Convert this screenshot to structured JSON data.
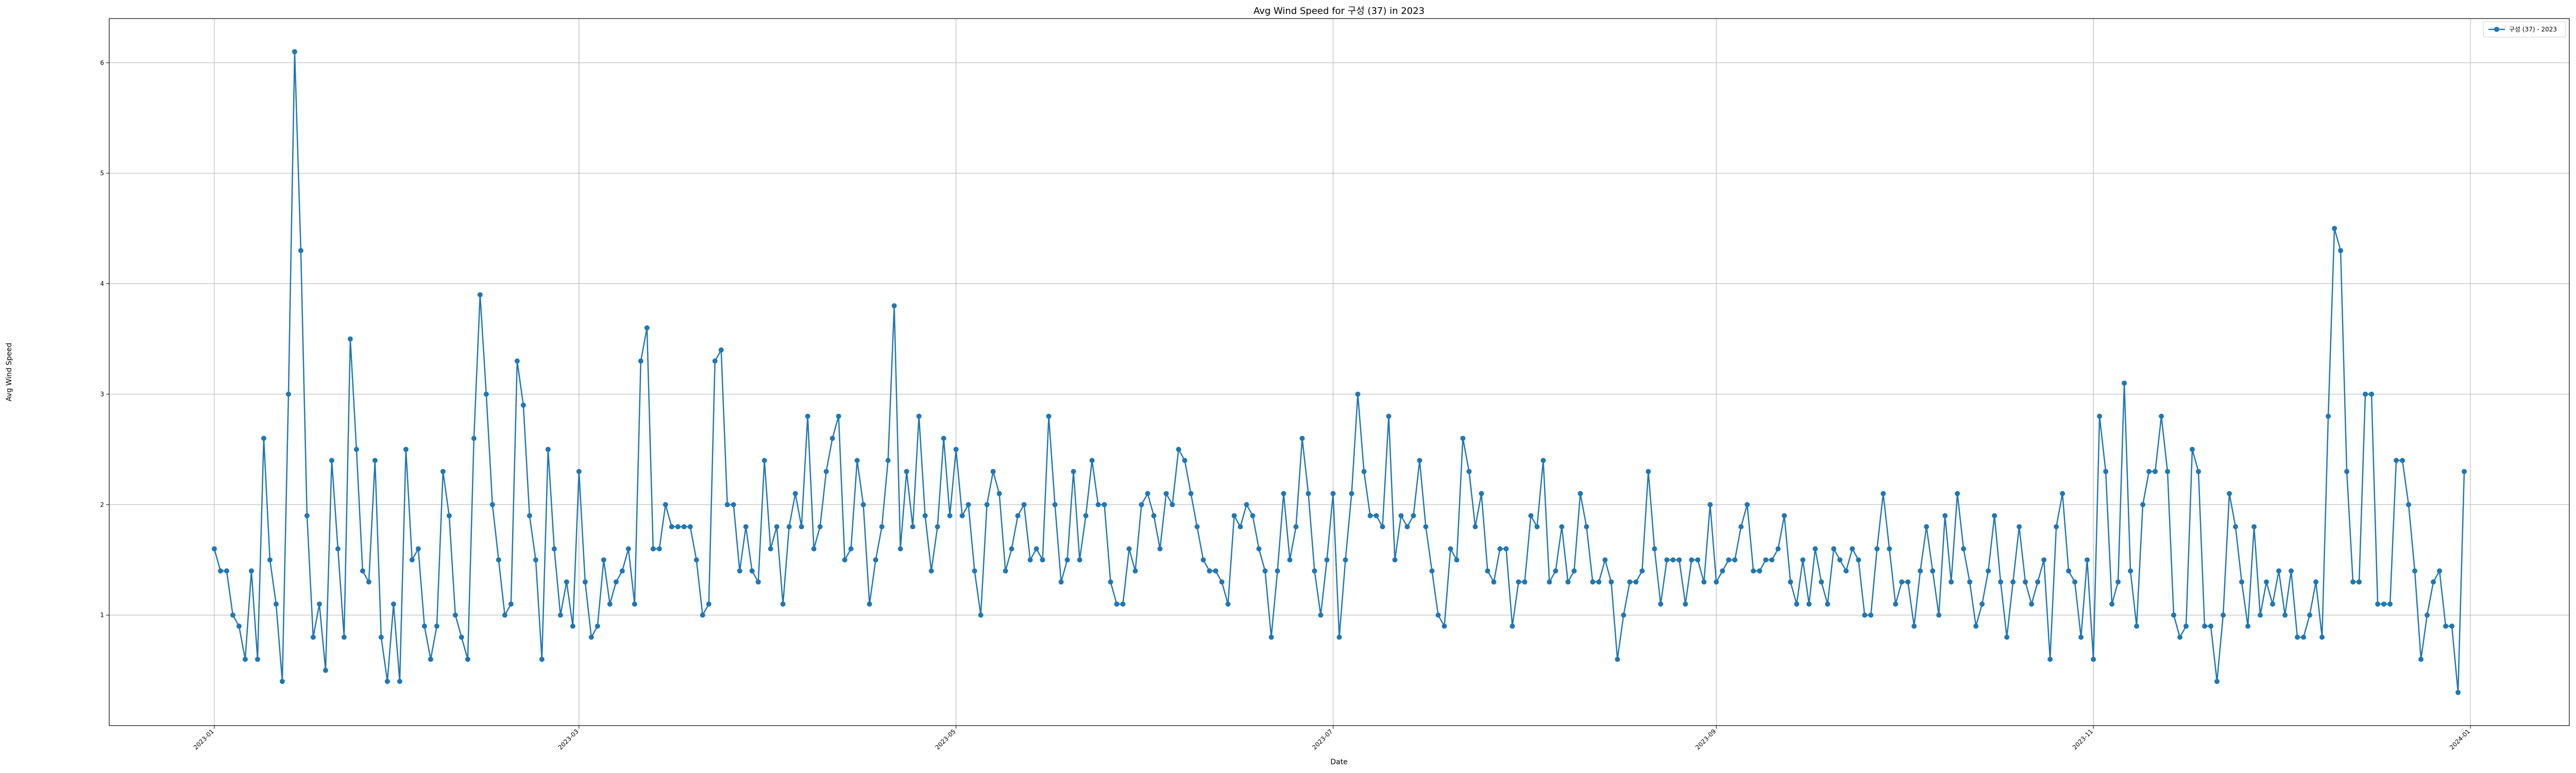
{
  "chart_data": {
    "type": "line",
    "title": "Avg Wind Speed for 구성 (37) in 2023",
    "xlabel": "Date",
    "ylabel": "Avg Wind Speed",
    "x_axis": {
      "kind": "date",
      "range": [
        "2022-12-15",
        "2024-01-17"
      ],
      "ticks": [
        "2023-01",
        "2023-03",
        "2023-05",
        "2023-07",
        "2023-09",
        "2023-11",
        "2024-01"
      ]
    },
    "y_axis": {
      "range": [
        0,
        6.4
      ],
      "ticks": [
        1,
        2,
        3,
        4,
        5,
        6
      ]
    },
    "grid": true,
    "legend_position": "top-right",
    "color": "#1f77b4",
    "x_start": "2023-01-01",
    "series": [
      {
        "name": "구성 (37) - 2023",
        "values": [
          1.6,
          1.4,
          1.4,
          1.0,
          0.9,
          0.6,
          1.4,
          0.6,
          2.6,
          1.5,
          1.1,
          0.4,
          3.0,
          6.1,
          4.3,
          1.9,
          0.8,
          1.1,
          0.5,
          2.4,
          1.6,
          0.8,
          3.5,
          2.5,
          1.4,
          1.3,
          2.4,
          0.8,
          0.4,
          1.1,
          0.4,
          2.5,
          1.5,
          1.6,
          0.9,
          0.6,
          0.9,
          2.3,
          1.9,
          1.0,
          0.8,
          0.6,
          2.6,
          3.9,
          3.0,
          2.0,
          1.5,
          1.0,
          1.1,
          3.3,
          2.9,
          1.9,
          1.5,
          0.6,
          2.5,
          1.6,
          1.0,
          1.3,
          0.9,
          2.3,
          1.3,
          0.8,
          0.9,
          1.5,
          1.1,
          1.3,
          1.4,
          1.6,
          1.1,
          3.3,
          3.6,
          1.6,
          1.6,
          2.0,
          1.8,
          1.8,
          1.8,
          1.8,
          1.5,
          1.0,
          1.1,
          3.3,
          3.4,
          2.0,
          2.0,
          1.4,
          1.8,
          1.4,
          1.3,
          2.4,
          1.6,
          1.8,
          1.1,
          1.8,
          2.1,
          1.8,
          2.8,
          1.6,
          1.8,
          2.3,
          2.6,
          2.8,
          1.5,
          1.6,
          2.4,
          2.0,
          1.1,
          1.5,
          1.8,
          2.4,
          3.8,
          1.6,
          2.3,
          1.8,
          2.8,
          1.9,
          1.4,
          1.8,
          2.6,
          1.9,
          2.5,
          1.9,
          2.0,
          1.4,
          1.0,
          2.0,
          2.3,
          2.1,
          1.4,
          1.6,
          1.9,
          2.0,
          1.5,
          1.6,
          1.5,
          2.8,
          2.0,
          1.3,
          1.5,
          2.3,
          1.5,
          1.9,
          2.4,
          2.0,
          2.0,
          1.3,
          1.1,
          1.1,
          1.6,
          1.4,
          2.0,
          2.1,
          1.9,
          1.6,
          2.1,
          2.0,
          2.5,
          2.4,
          2.1,
          1.8,
          1.5,
          1.4,
          1.4,
          1.3,
          1.1,
          1.9,
          1.8,
          2.0,
          1.9,
          1.6,
          1.4,
          0.8,
          1.4,
          2.1,
          1.5,
          1.8,
          2.6,
          2.1,
          1.4,
          1.0,
          1.5,
          2.1,
          0.8,
          1.5,
          2.1,
          3.0,
          2.3,
          1.9,
          1.9,
          1.8,
          2.8,
          1.5,
          1.9,
          1.8,
          1.9,
          2.4,
          1.8,
          1.4,
          1.0,
          0.9,
          1.6,
          1.5,
          2.6,
          2.3,
          1.8,
          2.1,
          1.4,
          1.3,
          1.6,
          1.6,
          0.9,
          1.3,
          1.3,
          1.9,
          1.8,
          2.4,
          1.3,
          1.4,
          1.8,
          1.3,
          1.4,
          2.1,
          1.8,
          1.3,
          1.3,
          1.5,
          1.3,
          0.6,
          1.0,
          1.3,
          1.3,
          1.4,
          2.3,
          1.6,
          1.1,
          1.5,
          1.5,
          1.5,
          1.1,
          1.5,
          1.5,
          1.3,
          2.0,
          1.3,
          1.4,
          1.5,
          1.5,
          1.8,
          2.0,
          1.4,
          1.4,
          1.5,
          1.5,
          1.6,
          1.9,
          1.3,
          1.1,
          1.5,
          1.1,
          1.6,
          1.3,
          1.1,
          1.6,
          1.5,
          1.4,
          1.6,
          1.5,
          1.0,
          1.0,
          1.6,
          2.1,
          1.6,
          1.1,
          1.3,
          1.3,
          0.9,
          1.4,
          1.8,
          1.4,
          1.0,
          1.9,
          1.3,
          2.1,
          1.6,
          1.3,
          0.9,
          1.1,
          1.4,
          1.9,
          1.3,
          0.8,
          1.3,
          1.8,
          1.3,
          1.1,
          1.3,
          1.5,
          0.6,
          1.8,
          2.1,
          1.4,
          1.3,
          0.8,
          1.5,
          0.6,
          2.8,
          2.3,
          1.1,
          1.3,
          3.1,
          1.4,
          0.9,
          2.0,
          2.3,
          2.3,
          2.8,
          2.3,
          1.0,
          0.8,
          0.9,
          2.5,
          2.3,
          0.9,
          0.9,
          0.4,
          1.0,
          2.1,
          1.8,
          1.3,
          0.9,
          1.8,
          1.0,
          1.3,
          1.1,
          1.4,
          1.0,
          1.4,
          0.8,
          0.8,
          1.0,
          1.3,
          0.8,
          2.8,
          4.5,
          4.3,
          2.3,
          1.3,
          1.3,
          3.0,
          3.0,
          1.1,
          1.1,
          1.1,
          2.4,
          2.4,
          2.0,
          1.4,
          0.6,
          1.0,
          1.3,
          1.4,
          0.9,
          0.9,
          0.3,
          2.3
        ]
      }
    ]
  }
}
